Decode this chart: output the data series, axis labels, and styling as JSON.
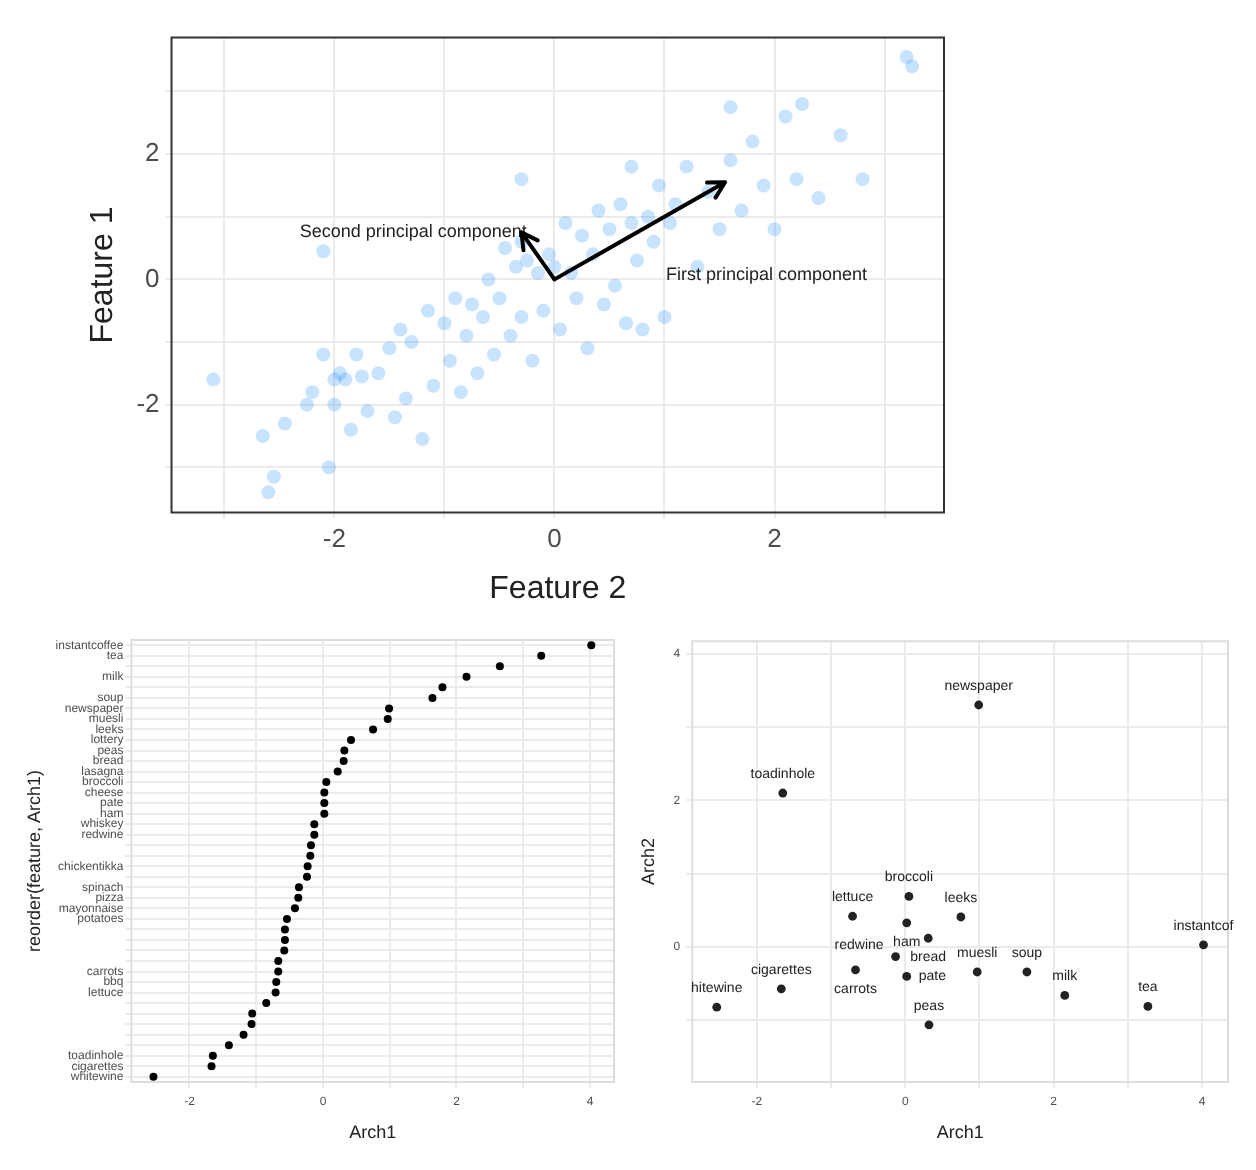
{
  "chart_data": [
    {
      "type": "scatter",
      "xlabel": "Feature 2",
      "ylabel": "Feature 1",
      "xlim": [
        -3.48,
        3.54
      ],
      "ylim": [
        -3.72,
        3.86
      ],
      "xticks": [
        {
          "value": -3,
          "label": null
        },
        -2,
        {
          "value": -1,
          "label": null
        },
        0,
        {
          "value": 1,
          "label": null
        },
        2,
        {
          "value": 3,
          "label": null
        }
      ],
      "yticks": [
        {
          "value": -3,
          "label": null
        },
        -2,
        {
          "value": -1,
          "label": null
        },
        0,
        {
          "value": 1,
          "label": null
        },
        2,
        {
          "value": 3,
          "label": null
        }
      ],
      "grid": true,
      "marker": "circle",
      "color": "#1e90ff",
      "annotations": [
        "Second principal component",
        "First principal component"
      ],
      "x": [
        -3.1,
        -2.65,
        -2.6,
        -2.55,
        -2.45,
        -2.25,
        -2.2,
        -2.1,
        -2.05,
        -2.0,
        -2.0,
        -1.95,
        -1.9,
        -1.85,
        -1.8,
        -1.75,
        -1.7,
        -1.6,
        -1.5,
        -1.45,
        -1.4,
        -1.35,
        -1.3,
        -1.2,
        -1.15,
        -1.1,
        -1.0,
        -0.95,
        -0.9,
        -0.85,
        -0.8,
        -0.75,
        -0.7,
        -0.65,
        -0.6,
        -0.55,
        -0.5,
        -0.45,
        -0.4,
        -0.35,
        -0.3,
        -0.3,
        -0.25,
        -0.2,
        -0.15,
        -0.1,
        -0.05,
        0.0,
        0.05,
        0.1,
        0.15,
        0.2,
        0.25,
        0.3,
        0.35,
        0.4,
        0.45,
        0.5,
        0.55,
        0.6,
        0.65,
        0.7,
        0.75,
        0.8,
        0.85,
        0.9,
        0.95,
        1.0,
        1.05,
        1.1,
        1.2,
        1.3,
        1.4,
        1.5,
        1.6,
        1.7,
        1.8,
        1.9,
        2.0,
        2.1,
        2.2,
        2.25,
        2.4,
        2.6,
        2.8,
        3.2,
        3.25,
        -2.1,
        -0.3,
        1.6,
        0.7
      ],
      "values": [
        -1.6,
        -2.5,
        -3.4,
        -3.15,
        -2.3,
        -2.0,
        -1.8,
        -1.2,
        -3.0,
        -1.6,
        -2.0,
        -1.5,
        -1.6,
        -2.4,
        -1.2,
        -1.55,
        -2.1,
        -1.5,
        -1.1,
        -2.2,
        -0.8,
        -1.9,
        -1.0,
        -2.55,
        -0.5,
        -1.7,
        -0.7,
        -1.3,
        -0.3,
        -1.8,
        -0.9,
        -0.4,
        -1.5,
        -0.6,
        0.0,
        -1.2,
        -0.3,
        0.5,
        -0.9,
        0.2,
        -0.6,
        0.6,
        0.3,
        -1.3,
        0.1,
        -0.5,
        0.4,
        0.2,
        -0.8,
        0.9,
        0.1,
        -0.3,
        0.7,
        -1.1,
        0.4,
        1.1,
        -0.4,
        0.8,
        -0.1,
        1.2,
        -0.7,
        1.8,
        0.3,
        -0.8,
        1.0,
        0.6,
        1.5,
        -0.6,
        0.9,
        1.2,
        1.8,
        0.2,
        1.4,
        0.8,
        1.9,
        1.1,
        2.2,
        1.5,
        0.8,
        2.6,
        1.6,
        2.8,
        1.3,
        2.3,
        1.6,
        3.55,
        3.4,
        0.45,
        1.6,
        2.75,
        0.9
      ]
    },
    {
      "type": "scatter",
      "orientation": "horizontal",
      "xlabel": "Arch1",
      "ylabel": "reorder(feature, Arch1)",
      "xlim": [
        -2.87,
        4.36
      ],
      "xticks": [
        -2,
        {
          "value": -1,
          "label": null
        },
        0,
        {
          "value": 1,
          "label": null
        },
        2,
        {
          "value": 3,
          "label": null
        },
        4
      ],
      "grid": true,
      "marker": "circle",
      "color": "#000000",
      "categories": [
        "instantcoffee",
        "tea",
        null,
        "milk",
        null,
        "soup",
        "newspaper",
        "muesli",
        "leeks",
        "lottery",
        "peas",
        "bread",
        "lasagna",
        "broccoli",
        "cheese",
        "pate",
        "ham",
        "whiskey",
        "redwine",
        null,
        null,
        "chickentikka",
        null,
        "spinach",
        "pizza",
        "mayonnaise",
        "potatoes",
        null,
        null,
        null,
        null,
        "carrots",
        "bbq",
        "lettuce",
        null,
        null,
        null,
        null,
        null,
        "toadinhole",
        "cigarettes",
        "whitewine"
      ],
      "values": [
        4.02,
        3.27,
        2.65,
        2.15,
        1.79,
        1.64,
        0.99,
        0.97,
        0.75,
        0.42,
        0.32,
        0.31,
        0.22,
        0.05,
        0.02,
        0.02,
        0.02,
        -0.13,
        -0.13,
        -0.18,
        -0.19,
        -0.23,
        -0.24,
        -0.36,
        -0.37,
        -0.42,
        -0.54,
        -0.57,
        -0.57,
        -0.58,
        -0.67,
        -0.67,
        -0.7,
        -0.71,
        -0.85,
        -1.06,
        -1.07,
        -1.19,
        -1.41,
        -1.65,
        -1.67,
        -2.54
      ]
    },
    {
      "type": "scatter",
      "xlabel": "Arch1",
      "ylabel": "Arch2",
      "xlim": [
        -2.87,
        4.35
      ],
      "ylim": [
        -1.84,
        4.17
      ],
      "xticks": [
        -2,
        {
          "value": -1,
          "label": null
        },
        0,
        {
          "value": 1,
          "label": null
        },
        2,
        {
          "value": 3,
          "label": null
        },
        4
      ],
      "yticks": [
        {
          "value": -1,
          "label": null
        },
        0,
        {
          "value": 1,
          "label": null
        },
        2,
        {
          "value": 3,
          "label": null
        },
        4
      ],
      "grid": true,
      "marker": "circle",
      "color": "#222222",
      "x": [
        4.02,
        3.27,
        2.15,
        1.64,
        0.99,
        0.97,
        0.75,
        0.32,
        0.31,
        0.05,
        0.02,
        0.02,
        -0.13,
        -0.67,
        -0.71,
        -1.65,
        -1.67,
        -2.54
      ],
      "values": [
        0.03,
        -0.81,
        -0.66,
        -0.34,
        3.3,
        -0.34,
        0.41,
        -1.06,
        0.12,
        0.69,
        -0.4,
        0.33,
        -0.13,
        -0.31,
        0.42,
        2.1,
        -0.57,
        -0.82
      ],
      "value_labels": [
        "instantcof",
        "tea",
        "milk",
        "soup",
        "newspaper",
        "muesli",
        "leeks",
        "peas",
        "bread",
        "broccoli",
        "pate",
        "ham",
        "redwine",
        "carrots",
        "lettuce",
        "toadinhole",
        "cigarettes",
        "hitewine"
      ]
    }
  ]
}
